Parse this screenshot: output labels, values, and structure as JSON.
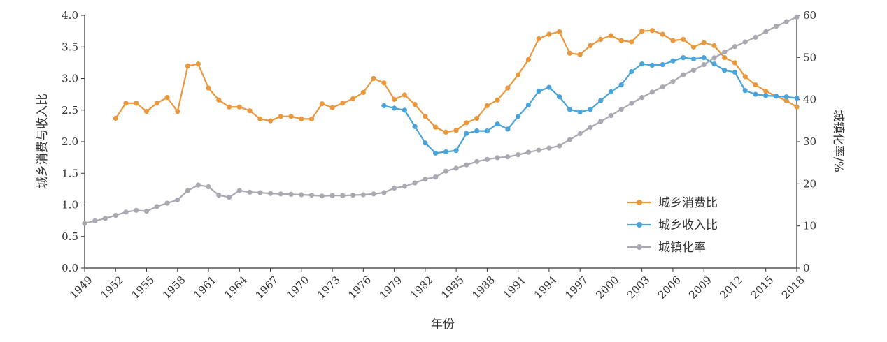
{
  "chart_data": {
    "type": "line",
    "xlabel": "年份",
    "ylabel_left": "城乡消费与收入比",
    "ylabel_right": "城镇化率/%",
    "y_left_lim": [
      0,
      4
    ],
    "y_left_ticks": [
      "0.0",
      "0.5",
      "1.0",
      "1.5",
      "2.0",
      "2.5",
      "3.0",
      "3.5",
      "4.0"
    ],
    "y_right_lim": [
      0,
      60
    ],
    "y_right_ticks": [
      "0",
      "10",
      "20",
      "30",
      "40",
      "50",
      "60"
    ],
    "x_lim": [
      1949,
      2018
    ],
    "x_ticks": [
      "1949",
      "1952",
      "1955",
      "1958",
      "1961",
      "1964",
      "1967",
      "1970",
      "1973",
      "1976",
      "1979",
      "1982",
      "1985",
      "1988",
      "1991",
      "1994",
      "1997",
      "2000",
      "2003",
      "2006",
      "2009",
      "2012",
      "2015",
      "2018"
    ],
    "legend_position": "lower-right",
    "grid": false,
    "series": [
      {
        "name": "城乡消费比",
        "axis": "left",
        "color": "#e9983e",
        "x": [
          1952,
          1953,
          1954,
          1955,
          1956,
          1957,
          1958,
          1959,
          1960,
          1961,
          1962,
          1963,
          1964,
          1965,
          1966,
          1967,
          1968,
          1969,
          1970,
          1971,
          1972,
          1973,
          1974,
          1975,
          1976,
          1977,
          1978,
          1979,
          1980,
          1981,
          1982,
          1983,
          1984,
          1985,
          1986,
          1987,
          1988,
          1989,
          1990,
          1991,
          1992,
          1993,
          1994,
          1995,
          1996,
          1997,
          1998,
          1999,
          2000,
          2001,
          2002,
          2003,
          2004,
          2005,
          2006,
          2007,
          2008,
          2009,
          2010,
          2011,
          2012,
          2013,
          2014,
          2015,
          2016,
          2017,
          2018
        ],
        "values": [
          2.37,
          2.61,
          2.61,
          2.48,
          2.61,
          2.7,
          2.48,
          3.2,
          3.23,
          2.85,
          2.66,
          2.55,
          2.55,
          2.49,
          2.36,
          2.33,
          2.4,
          2.4,
          2.36,
          2.36,
          2.6,
          2.54,
          2.61,
          2.68,
          2.78,
          3.0,
          2.93,
          2.67,
          2.74,
          2.59,
          2.4,
          2.23,
          2.15,
          2.18,
          2.3,
          2.37,
          2.57,
          2.66,
          2.85,
          3.06,
          3.3,
          3.63,
          3.7,
          3.74,
          3.4,
          3.38,
          3.52,
          3.62,
          3.68,
          3.6,
          3.58,
          3.75,
          3.76,
          3.7,
          3.6,
          3.62,
          3.5,
          3.57,
          3.52,
          3.33,
          3.25,
          3.03,
          2.9,
          2.8,
          2.72,
          2.65,
          2.55
        ]
      },
      {
        "name": "城乡收入比",
        "axis": "left",
        "color": "#4aa3d9",
        "x": [
          1978,
          1979,
          1980,
          1981,
          1982,
          1983,
          1984,
          1985,
          1986,
          1987,
          1988,
          1989,
          1990,
          1991,
          1992,
          1993,
          1994,
          1995,
          1996,
          1997,
          1998,
          1999,
          2000,
          2001,
          2002,
          2003,
          2004,
          2005,
          2006,
          2007,
          2008,
          2009,
          2010,
          2011,
          2012,
          2013,
          2014,
          2015,
          2016,
          2017,
          2018
        ],
        "values": [
          2.57,
          2.53,
          2.5,
          2.24,
          1.98,
          1.82,
          1.84,
          1.86,
          2.13,
          2.17,
          2.17,
          2.28,
          2.2,
          2.4,
          2.58,
          2.8,
          2.86,
          2.71,
          2.51,
          2.47,
          2.51,
          2.65,
          2.79,
          2.9,
          3.11,
          3.23,
          3.21,
          3.22,
          3.28,
          3.33,
          3.31,
          3.33,
          3.23,
          3.13,
          3.1,
          2.81,
          2.75,
          2.73,
          2.72,
          2.71,
          2.69
        ]
      },
      {
        "name": "城镇化率",
        "axis": "right",
        "color": "#a9a9b2",
        "x": [
          1949,
          1950,
          1951,
          1952,
          1953,
          1954,
          1955,
          1956,
          1957,
          1958,
          1959,
          1960,
          1961,
          1962,
          1963,
          1964,
          1965,
          1966,
          1967,
          1968,
          1969,
          1970,
          1971,
          1972,
          1973,
          1974,
          1975,
          1976,
          1977,
          1978,
          1979,
          1980,
          1981,
          1982,
          1983,
          1984,
          1985,
          1986,
          1987,
          1988,
          1989,
          1990,
          1991,
          1992,
          1993,
          1994,
          1995,
          1996,
          1997,
          1998,
          1999,
          2000,
          2001,
          2002,
          2003,
          2004,
          2005,
          2006,
          2007,
          2008,
          2009,
          2010,
          2011,
          2012,
          2013,
          2014,
          2015,
          2016,
          2017,
          2018
        ],
        "values": [
          10.6,
          11.2,
          11.8,
          12.5,
          13.3,
          13.7,
          13.5,
          14.6,
          15.4,
          16.2,
          18.4,
          19.7,
          19.3,
          17.3,
          16.8,
          18.4,
          18.0,
          17.9,
          17.7,
          17.6,
          17.5,
          17.4,
          17.3,
          17.1,
          17.2,
          17.2,
          17.3,
          17.4,
          17.6,
          17.9,
          19.0,
          19.4,
          20.2,
          21.1,
          21.6,
          23.0,
          23.7,
          24.5,
          25.3,
          25.8,
          26.2,
          26.4,
          26.9,
          27.5,
          28.0,
          28.5,
          29.0,
          30.5,
          31.9,
          33.4,
          34.8,
          36.2,
          37.7,
          39.1,
          40.5,
          41.8,
          43.0,
          44.3,
          45.9,
          47.0,
          48.3,
          49.9,
          51.3,
          52.6,
          53.7,
          54.8,
          56.1,
          57.4,
          58.5,
          59.6
        ]
      }
    ]
  }
}
